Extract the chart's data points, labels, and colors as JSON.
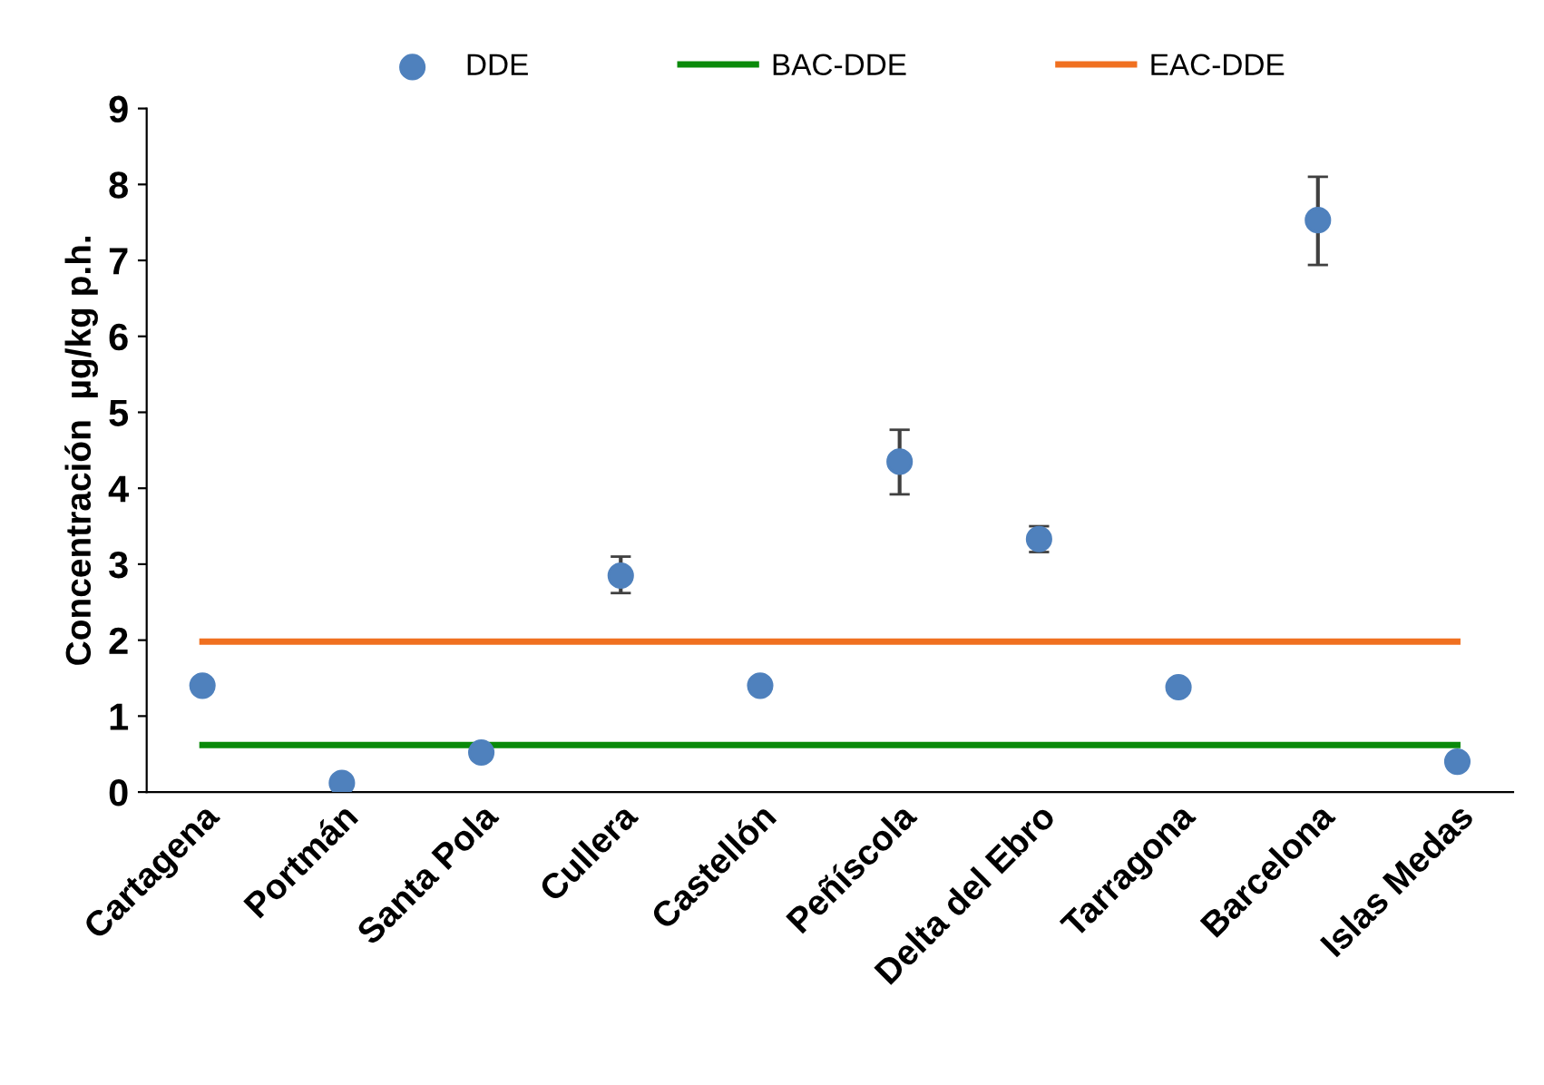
{
  "chart_data": {
    "type": "scatter",
    "ylabel": "Concentración  µg/kg p.h.",
    "categories": [
      "Cartagena",
      "Portmán",
      "Santa Pola",
      "Cullera",
      "Castellón",
      "Peñíscola",
      "Delta del Ebro",
      "Tarragona",
      "Barcelona",
      "Islas Medas"
    ],
    "series": [
      {
        "name": "DDE",
        "color": "#4f81bd",
        "marker": "circle",
        "values": [
          1.4,
          0.12,
          0.52,
          2.85,
          1.4,
          4.35,
          3.33,
          1.38,
          7.53,
          0.4
        ],
        "errors": [
          null,
          null,
          null,
          [
            2.62,
            3.1
          ],
          null,
          [
            3.92,
            4.77
          ],
          [
            3.16,
            3.5
          ],
          null,
          [
            6.94,
            8.1
          ],
          null
        ]
      },
      {
        "name": "BAC-DDE",
        "type": "line",
        "color": "#0a8a0a",
        "marker": "none",
        "values": [
          0.62,
          0.62,
          0.62,
          0.62,
          0.62,
          0.62,
          0.62,
          0.62,
          0.62,
          0.62
        ]
      },
      {
        "name": "EAC-DDE",
        "type": "line",
        "color": "#f07020",
        "marker": "none",
        "values": [
          1.98,
          1.98,
          1.98,
          1.98,
          1.98,
          1.98,
          1.98,
          1.98,
          1.98,
          1.98
        ]
      }
    ],
    "ylim": [
      0,
      9
    ],
    "yticks": [
      0,
      1,
      2,
      3,
      4,
      5,
      6,
      7,
      8,
      9
    ],
    "grid": false,
    "legend": "top"
  }
}
